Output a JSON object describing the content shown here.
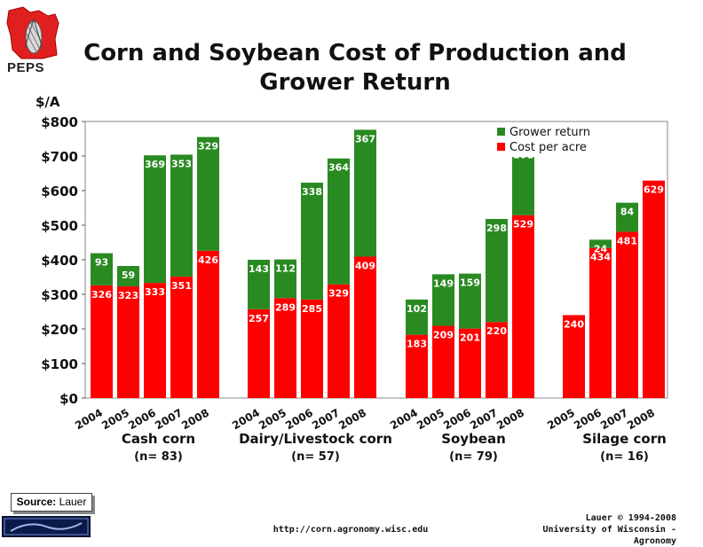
{
  "logo_text": "PEPS",
  "title_line1": "Corn and Soybean Cost of Production and",
  "title_line2": "Grower Return",
  "source_label": "Source:",
  "source_value": "Lauer",
  "url": "http://corn.agronomy.wisc.edu",
  "credit_line1": "Lauer © 1994-2008",
  "credit_line2": "University of Wisconsin - Agronomy",
  "colors": {
    "cost": "#ff0000",
    "return": "#2a8a22",
    "label": "#ffffff"
  },
  "chart_data": {
    "type": "bar",
    "stacked": true,
    "ylabel": "$/A",
    "ylim": [
      0,
      800
    ],
    "yticks": [
      "$0",
      "$100",
      "$200",
      "$300",
      "$400",
      "$500",
      "$600",
      "$700",
      "$800"
    ],
    "grid": false,
    "legend_position": "top-right",
    "series": [
      {
        "name": "Cost per acre",
        "color": "#ff0000"
      },
      {
        "name": "Grower return",
        "color": "#2a8a22"
      }
    ],
    "groups": [
      {
        "name": "Cash corn",
        "n": "(n= 83)",
        "bars": [
          {
            "year": "2004",
            "cost": 326,
            "return": 93
          },
          {
            "year": "2005",
            "cost": 323,
            "return": 59
          },
          {
            "year": "2006",
            "cost": 333,
            "return": 369
          },
          {
            "year": "2007",
            "cost": 351,
            "return": 353
          },
          {
            "year": "2008",
            "cost": 426,
            "return": 329
          }
        ]
      },
      {
        "name": "Dairy/Livestock corn",
        "n": "(n= 57)",
        "bars": [
          {
            "year": "2004",
            "cost": 257,
            "return": 143
          },
          {
            "year": "2005",
            "cost": 289,
            "return": 112
          },
          {
            "year": "2006",
            "cost": 285,
            "return": 338
          },
          {
            "year": "2007",
            "cost": 329,
            "return": 364
          },
          {
            "year": "2008",
            "cost": 409,
            "return": 367
          }
        ]
      },
      {
        "name": "Soybean",
        "n": "(n= 79)",
        "bars": [
          {
            "year": "2004",
            "cost": 183,
            "return": 102
          },
          {
            "year": "2005",
            "cost": 209,
            "return": 149
          },
          {
            "year": "2006",
            "cost": 201,
            "return": 159
          },
          {
            "year": "2007",
            "cost": 220,
            "return": 298
          },
          {
            "year": "2008",
            "cost": 529,
            "return": 201
          }
        ]
      },
      {
        "name": "Silage corn",
        "n": "(n= 16)",
        "bars": [
          {
            "year": "2005",
            "cost": 240,
            "return": null
          },
          {
            "year": "2006",
            "cost": 434,
            "return": 24
          },
          {
            "year": "2007",
            "cost": 481,
            "return": 84
          },
          {
            "year": "2008",
            "cost": 629,
            "return": null
          }
        ]
      }
    ]
  }
}
